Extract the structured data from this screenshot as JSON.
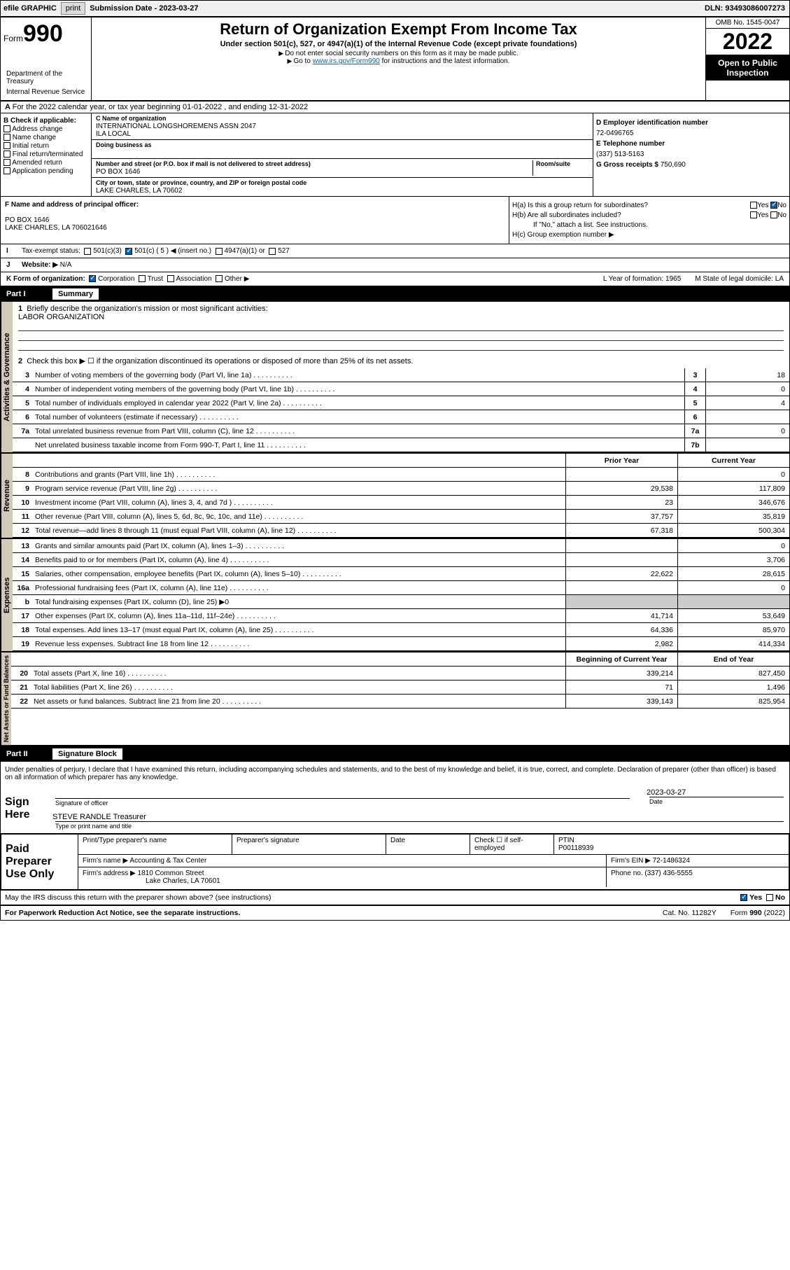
{
  "topbar": {
    "efile": "efile GRAPHIC",
    "print": "print",
    "subdate_lbl": "Submission Date - ",
    "subdate": "2023-03-27",
    "dln": "DLN: 93493086007273"
  },
  "header": {
    "form": "Form",
    "num": "990",
    "dept": "Department of the Treasury",
    "irs": "Internal Revenue Service",
    "title": "Return of Organization Exempt From Income Tax",
    "sub1": "Under section 501(c), 527, or 4947(a)(1) of the Internal Revenue Code (except private foundations)",
    "sub2": "Do not enter social security numbers on this form as it may be made public.",
    "sub3_pre": "Go to ",
    "sub3_link": "www.irs.gov/Form990",
    "sub3_post": " for instructions and the latest information.",
    "omb": "OMB No. 1545-0047",
    "year": "2022",
    "otp": "Open to Public Inspection"
  },
  "a": {
    "text": "For the 2022 calendar year, or tax year beginning 01-01-2022   , and ending 12-31-2022"
  },
  "b": {
    "hdr": "B Check if applicable:",
    "opts": [
      "Address change",
      "Name change",
      "Initial return",
      "Final return/terminated",
      "Amended return",
      "Application pending"
    ]
  },
  "c": {
    "name_lbl": "C Name of organization",
    "name1": "INTERNATIONAL LONGSHOREMENS ASSN 2047",
    "name2": "ILA LOCAL",
    "dba_lbl": "Doing business as",
    "addr_lbl": "Number and street (or P.O. box if mail is not delivered to street address)",
    "room_lbl": "Room/suite",
    "addr": "PO BOX 1646",
    "city_lbl": "City or town, state or province, country, and ZIP or foreign postal code",
    "city": "LAKE CHARLES, LA  70602"
  },
  "d": {
    "ein_lbl": "D Employer identification number",
    "ein": "72-0496765",
    "tel_lbl": "E Telephone number",
    "tel": "(337) 513-5163",
    "gross_lbl": "G Gross receipts $",
    "gross": "750,690"
  },
  "f": {
    "lbl": "F Name and address of principal officer:",
    "l1": "PO BOX 1646",
    "l2": "LAKE CHARLES, LA  706021646"
  },
  "h": {
    "a": "H(a)  Is this a group return for subordinates?",
    "b": "H(b)  Are all subordinates included?",
    "bnote": "If \"No,\" attach a list. See instructions.",
    "c": "H(c)  Group exemption number ▶",
    "yes": "Yes",
    "no": "No"
  },
  "i": {
    "lbl": "Tax-exempt status:",
    "o1": "501(c)(3)",
    "o2": "501(c) ( 5 ) ◀ (insert no.)",
    "o3": "4947(a)(1) or",
    "o4": "527"
  },
  "j": {
    "lbl": "Website: ▶",
    "val": "N/A"
  },
  "k": {
    "lbl": "K Form of organization:",
    "o1": "Corporation",
    "o2": "Trust",
    "o3": "Association",
    "o4": "Other ▶",
    "l": "L Year of formation: 1965",
    "m": "M State of legal domicile: LA"
  },
  "part1": {
    "num": "Part I",
    "title": "Summary"
  },
  "summary": {
    "q1": "Briefly describe the organization's mission or most significant activities:",
    "mission": "LABOR ORGANIZATION",
    "q2": "Check this box ▶ ☐ if the organization discontinued its operations or disposed of more than 25% of its net assets.",
    "lines_gov": [
      {
        "n": "3",
        "t": "Number of voting members of the governing body (Part VI, line 1a)",
        "b": "3",
        "v": "18"
      },
      {
        "n": "4",
        "t": "Number of independent voting members of the governing body (Part VI, line 1b)",
        "b": "4",
        "v": "0"
      },
      {
        "n": "5",
        "t": "Total number of individuals employed in calendar year 2022 (Part V, line 2a)",
        "b": "5",
        "v": "4"
      },
      {
        "n": "6",
        "t": "Total number of volunteers (estimate if necessary)",
        "b": "6",
        "v": ""
      },
      {
        "n": "7a",
        "t": "Total unrelated business revenue from Part VIII, column (C), line 12",
        "b": "7a",
        "v": "0"
      },
      {
        "n": "",
        "t": "Net unrelated business taxable income from Form 990-T, Part I, line 11",
        "b": "7b",
        "v": ""
      }
    ],
    "hdr_prior": "Prior Year",
    "hdr_curr": "Current Year",
    "lines_rev": [
      {
        "n": "8",
        "t": "Contributions and grants (Part VIII, line 1h)",
        "p": "",
        "c": "0"
      },
      {
        "n": "9",
        "t": "Program service revenue (Part VIII, line 2g)",
        "p": "29,538",
        "c": "117,809"
      },
      {
        "n": "10",
        "t": "Investment income (Part VIII, column (A), lines 3, 4, and 7d )",
        "p": "23",
        "c": "346,676"
      },
      {
        "n": "11",
        "t": "Other revenue (Part VIII, column (A), lines 5, 6d, 8c, 9c, 10c, and 11e)",
        "p": "37,757",
        "c": "35,819"
      },
      {
        "n": "12",
        "t": "Total revenue—add lines 8 through 11 (must equal Part VIII, column (A), line 12)",
        "p": "67,318",
        "c": "500,304"
      }
    ],
    "lines_exp": [
      {
        "n": "13",
        "t": "Grants and similar amounts paid (Part IX, column (A), lines 1–3)",
        "p": "",
        "c": "0"
      },
      {
        "n": "14",
        "t": "Benefits paid to or for members (Part IX, column (A), line 4)",
        "p": "",
        "c": "3,706"
      },
      {
        "n": "15",
        "t": "Salaries, other compensation, employee benefits (Part IX, column (A), lines 5–10)",
        "p": "22,622",
        "c": "28,615"
      },
      {
        "n": "16a",
        "t": "Professional fundraising fees (Part IX, column (A), line 11e)",
        "p": "",
        "c": "0"
      },
      {
        "n": "b",
        "t": "Total fundraising expenses (Part IX, column (D), line 25) ▶0",
        "p": "",
        "c": "",
        "noval": true
      },
      {
        "n": "17",
        "t": "Other expenses (Part IX, column (A), lines 11a–11d, 11f–24e)",
        "p": "41,714",
        "c": "53,649"
      },
      {
        "n": "18",
        "t": "Total expenses. Add lines 13–17 (must equal Part IX, column (A), line 25)",
        "p": "64,336",
        "c": "85,970"
      },
      {
        "n": "19",
        "t": "Revenue less expenses. Subtract line 18 from line 12",
        "p": "2,982",
        "c": "414,334"
      }
    ],
    "hdr_beg": "Beginning of Current Year",
    "hdr_end": "End of Year",
    "lines_net": [
      {
        "n": "20",
        "t": "Total assets (Part X, line 16)",
        "p": "339,214",
        "c": "827,450"
      },
      {
        "n": "21",
        "t": "Total liabilities (Part X, line 26)",
        "p": "71",
        "c": "1,496"
      },
      {
        "n": "22",
        "t": "Net assets or fund balances. Subtract line 21 from line 20",
        "p": "339,143",
        "c": "825,954"
      }
    ]
  },
  "sidelabels": {
    "gov": "Activities & Governance",
    "rev": "Revenue",
    "exp": "Expenses",
    "net": "Net Assets or Fund Balances"
  },
  "part2": {
    "num": "Part II",
    "title": "Signature Block"
  },
  "sig": {
    "perjury": "Under penalties of perjury, I declare that I have examined this return, including accompanying schedules and statements, and to the best of my knowledge and belief, it is true, correct, and complete. Declaration of preparer (other than officer) is based on all information of which preparer has any knowledge.",
    "here": "Sign Here",
    "sig_lbl": "Signature of officer",
    "date_lbl": "Date",
    "date": "2023-03-27",
    "name": "STEVE RANDLE Treasurer",
    "name_lbl": "Type or print name and title"
  },
  "prep": {
    "hdr": "Paid Preparer Use Only",
    "c1": "Print/Type preparer's name",
    "c2": "Preparer's signature",
    "c3": "Date",
    "c4a": "Check ☐ if self-employed",
    "c4b": "PTIN",
    "ptin": "P00118939",
    "firm_lbl": "Firm's name   ▶",
    "firm": "Accounting & Tax Center",
    "ein_lbl": "Firm's EIN ▶",
    "ein": "72-1486324",
    "addr_lbl": "Firm's address ▶",
    "addr1": "1810 Common Street",
    "addr2": "Lake Charles, LA  70601",
    "phone_lbl": "Phone no.",
    "phone": "(337) 436-5555"
  },
  "footer": {
    "q": "May the IRS discuss this return with the preparer shown above? (see instructions)",
    "yes": "Yes",
    "no": "No",
    "pra": "For Paperwork Reduction Act Notice, see the separate instructions.",
    "cat": "Cat. No. 11282Y",
    "form": "Form 990 (2022)"
  }
}
